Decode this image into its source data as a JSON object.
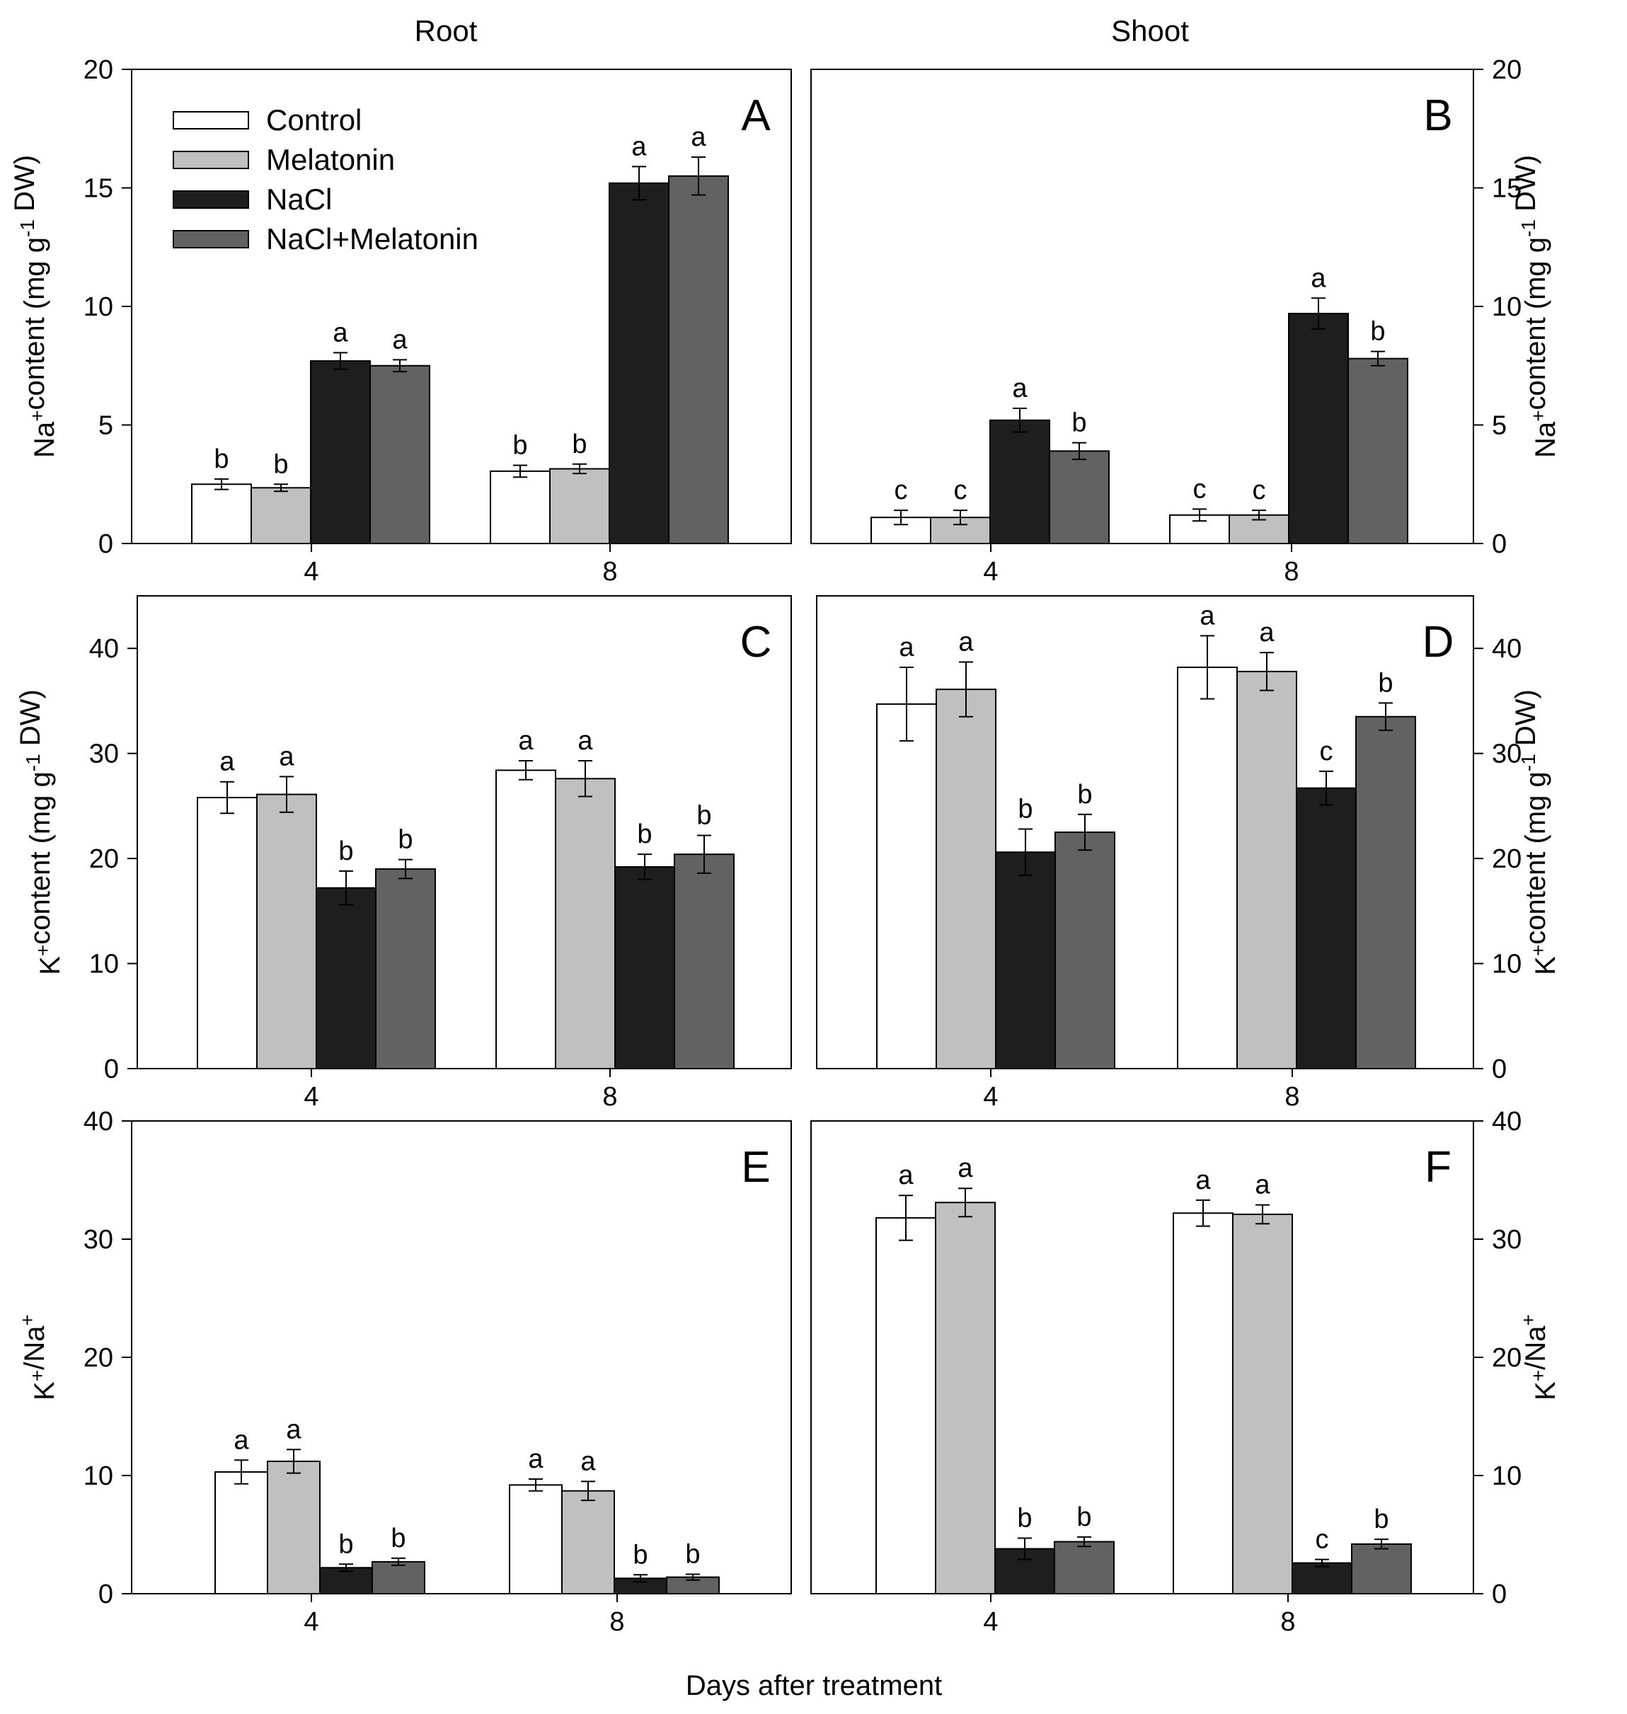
{
  "column_titles": [
    "Root",
    "Shoot"
  ],
  "xlabel": "Days after treatment",
  "legend": [
    {
      "label": "Control",
      "color": "#ffffff"
    },
    {
      "label": "Melatonin",
      "color": "#c0c0c0"
    },
    {
      "label": "NaCl",
      "color": "#1e1e1e"
    },
    {
      "label": "NaCl+Melatonin",
      "color": "#626262"
    }
  ],
  "series_colors": [
    "#ffffff",
    "#c0c0c0",
    "#1e1e1e",
    "#626262"
  ],
  "chart_data": [
    {
      "panel": "A",
      "type": "bar",
      "column": "Root",
      "ylabel": "Na+content (mg g-1 DW)",
      "ylim": [
        0,
        20
      ],
      "yticks": [
        0,
        5,
        10,
        15,
        20
      ],
      "categories": [
        "4",
        "8"
      ],
      "series": [
        {
          "name": "Control",
          "values": [
            2.5,
            3.05
          ],
          "errors": [
            0.22,
            0.25
          ],
          "letters": [
            "b",
            "b"
          ]
        },
        {
          "name": "Melatonin",
          "values": [
            2.35,
            3.15
          ],
          "errors": [
            0.15,
            0.2
          ],
          "letters": [
            "b",
            "b"
          ]
        },
        {
          "name": "NaCl",
          "values": [
            7.7,
            15.2
          ],
          "errors": [
            0.35,
            0.7
          ],
          "letters": [
            "a",
            "a"
          ]
        },
        {
          "name": "NaCl+Melatonin",
          "values": [
            7.5,
            15.5
          ],
          "errors": [
            0.25,
            0.8
          ],
          "letters": [
            "a",
            "a"
          ]
        }
      ]
    },
    {
      "panel": "B",
      "type": "bar",
      "column": "Shoot",
      "ylabel": "Na+content (mg g-1 DW)",
      "ylim": [
        0,
        20
      ],
      "yticks": [
        0,
        5,
        10,
        15,
        20
      ],
      "categories": [
        "4",
        "8"
      ],
      "series": [
        {
          "name": "Control",
          "values": [
            1.1,
            1.2
          ],
          "errors": [
            0.3,
            0.25
          ],
          "letters": [
            "c",
            "c"
          ]
        },
        {
          "name": "Melatonin",
          "values": [
            1.1,
            1.2
          ],
          "errors": [
            0.3,
            0.2
          ],
          "letters": [
            "c",
            "c"
          ]
        },
        {
          "name": "NaCl",
          "values": [
            5.2,
            9.7
          ],
          "errors": [
            0.5,
            0.65
          ],
          "letters": [
            "a",
            "a"
          ]
        },
        {
          "name": "NaCl+Melatonin",
          "values": [
            3.9,
            7.8
          ],
          "errors": [
            0.35,
            0.3
          ],
          "letters": [
            "b",
            "b"
          ]
        }
      ]
    },
    {
      "panel": "C",
      "type": "bar",
      "column": "Root",
      "ylabel": "K+content (mg g-1 DW)",
      "ylim": [
        0,
        45
      ],
      "yticks": [
        0,
        10,
        20,
        30,
        40
      ],
      "categories": [
        "4",
        "8"
      ],
      "series": [
        {
          "name": "Control",
          "values": [
            25.8,
            28.4
          ],
          "errors": [
            1.5,
            0.9
          ],
          "letters": [
            "a",
            "a"
          ]
        },
        {
          "name": "Melatonin",
          "values": [
            26.1,
            27.6
          ],
          "errors": [
            1.7,
            1.7
          ],
          "letters": [
            "a",
            "a"
          ]
        },
        {
          "name": "NaCl",
          "values": [
            17.2,
            19.2
          ],
          "errors": [
            1.6,
            1.2
          ],
          "letters": [
            "b",
            "b"
          ]
        },
        {
          "name": "NaCl+Melatonin",
          "values": [
            19.0,
            20.4
          ],
          "errors": [
            0.9,
            1.8
          ],
          "letters": [
            "b",
            "b"
          ]
        }
      ]
    },
    {
      "panel": "D",
      "type": "bar",
      "column": "Shoot",
      "ylabel": "K+content (mg g-1 DW)",
      "ylim": [
        0,
        45
      ],
      "yticks": [
        0,
        10,
        20,
        30,
        40
      ],
      "categories": [
        "4",
        "8"
      ],
      "series": [
        {
          "name": "Control",
          "values": [
            34.7,
            38.2
          ],
          "errors": [
            3.5,
            3.0
          ],
          "letters": [
            "a",
            "a"
          ]
        },
        {
          "name": "Melatonin",
          "values": [
            36.1,
            37.8
          ],
          "errors": [
            2.6,
            1.8
          ],
          "letters": [
            "a",
            "a"
          ]
        },
        {
          "name": "NaCl",
          "values": [
            20.6,
            26.7
          ],
          "errors": [
            2.2,
            1.6
          ],
          "letters": [
            "b",
            "c"
          ]
        },
        {
          "name": "NaCl+Melatonin",
          "values": [
            22.5,
            33.5
          ],
          "errors": [
            1.7,
            1.3
          ],
          "letters": [
            "b",
            "b"
          ]
        }
      ]
    },
    {
      "panel": "E",
      "type": "bar",
      "column": "Root",
      "ylabel": "K+/Na+",
      "ylim": [
        0,
        40
      ],
      "yticks": [
        0,
        10,
        20,
        30,
        40
      ],
      "categories": [
        "4",
        "8"
      ],
      "series": [
        {
          "name": "Control",
          "values": [
            10.3,
            9.2
          ],
          "errors": [
            1.0,
            0.5
          ],
          "letters": [
            "a",
            "a"
          ]
        },
        {
          "name": "Melatonin",
          "values": [
            11.2,
            8.7
          ],
          "errors": [
            1.0,
            0.8
          ],
          "letters": [
            "a",
            "a"
          ]
        },
        {
          "name": "NaCl",
          "values": [
            2.2,
            1.3
          ],
          "errors": [
            0.3,
            0.3
          ],
          "letters": [
            "b",
            "b"
          ]
        },
        {
          "name": "NaCl+Melatonin",
          "values": [
            2.7,
            1.4
          ],
          "errors": [
            0.3,
            0.25
          ],
          "letters": [
            "b",
            "b"
          ]
        }
      ]
    },
    {
      "panel": "F",
      "type": "bar",
      "column": "Shoot",
      "ylabel": "K+/Na+",
      "ylim": [
        0,
        40
      ],
      "yticks": [
        0,
        10,
        20,
        30,
        40
      ],
      "categories": [
        "4",
        "8"
      ],
      "series": [
        {
          "name": "Control",
          "values": [
            31.8,
            32.2
          ],
          "errors": [
            1.9,
            1.1
          ],
          "letters": [
            "a",
            "a"
          ]
        },
        {
          "name": "Melatonin",
          "values": [
            33.1,
            32.1
          ],
          "errors": [
            1.2,
            0.8
          ],
          "letters": [
            "a",
            "a"
          ]
        },
        {
          "name": "NaCl",
          "values": [
            3.8,
            2.6
          ],
          "errors": [
            0.9,
            0.3
          ],
          "letters": [
            "b",
            "c"
          ]
        },
        {
          "name": "NaCl+Melatonin",
          "values": [
            4.4,
            4.2
          ],
          "errors": [
            0.4,
            0.4
          ],
          "letters": [
            "b",
            "b"
          ]
        }
      ]
    }
  ]
}
